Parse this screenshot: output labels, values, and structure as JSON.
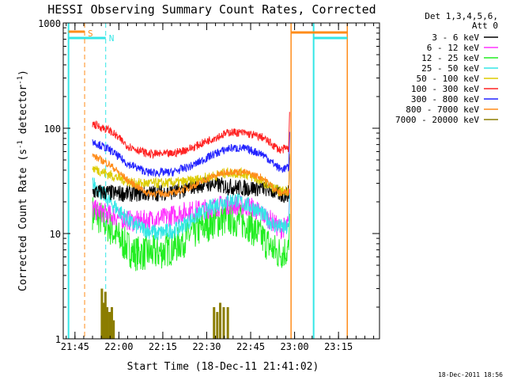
{
  "chart_data": {
    "type": "line",
    "title": "HESSI Observing Summary Count Rates, Corrected",
    "xlabel": "Start Time (18-Dec-11 21:41:02)",
    "ylabel_main": "Corrected Count Rate (s",
    "ylabel_sup1": "-1",
    "ylabel_mid": " detector",
    "ylabel_sup2": "-1",
    "ylabel_end": ")",
    "footer": "18-Dec-2011 18:56",
    "legend_header": [
      "Det 1,3,4,5,6,",
      "Att 0"
    ],
    "y_scale": "log",
    "ylim": [
      1,
      1000
    ],
    "xlim_min": [
      -4,
      104
    ],
    "y_ticks": [
      {
        "value": 1,
        "label": "1"
      },
      {
        "value": 10,
        "label": "10"
      },
      {
        "value": 100,
        "label": "100"
      },
      {
        "value": 1000,
        "label": "1000"
      }
    ],
    "x_ticks": [
      {
        "value": 0,
        "label": "21:45"
      },
      {
        "value": 15,
        "label": "22:00"
      },
      {
        "value": 30,
        "label": "22:15"
      },
      {
        "value": 45,
        "label": "22:30"
      },
      {
        "value": 60,
        "label": "22:45"
      },
      {
        "value": 75,
        "label": "23:00"
      },
      {
        "value": 90,
        "label": "23:15"
      }
    ],
    "markers": [
      {
        "label": "S",
        "x": 3.3,
        "color": "#ff8c1a",
        "style": "dash"
      },
      {
        "label": "N",
        "x": 10.5,
        "color": "#33e6e6",
        "style": "dash"
      }
    ],
    "night_markers": [
      {
        "x": -2.2,
        "color": "#33e6e6"
      },
      {
        "x": 81.5,
        "color": "#33e6e6"
      }
    ],
    "saa_markers": [
      {
        "x": 73.8,
        "color": "#ff8c1a"
      },
      {
        "x": 93.0,
        "color": "#ff8c1a"
      }
    ],
    "series": [
      {
        "name": "3 - 6 keV",
        "color": "#000000",
        "points": [
          [
            6,
            25
          ],
          [
            15,
            24
          ],
          [
            25,
            24
          ],
          [
            35,
            25
          ],
          [
            40,
            28
          ],
          [
            45,
            30
          ],
          [
            52,
            28
          ],
          [
            58,
            27
          ],
          [
            65,
            27
          ],
          [
            71,
            23
          ],
          [
            73,
            24
          ]
        ],
        "noise": 0.08
      },
      {
        "name": "6 - 12 keV",
        "color": "#ff33ff",
        "points": [
          [
            6,
            17
          ],
          [
            12,
            15
          ],
          [
            20,
            13
          ],
          [
            30,
            14
          ],
          [
            37,
            16
          ],
          [
            44,
            17
          ],
          [
            52,
            19
          ],
          [
            60,
            18
          ],
          [
            66,
            14
          ],
          [
            70,
            11
          ],
          [
            73,
            12
          ]
        ],
        "noise": 0.1
      },
      {
        "name": "12 - 25 keV",
        "color": "#22ee22",
        "points": [
          [
            6,
            16
          ],
          [
            10,
            13
          ],
          [
            15,
            9
          ],
          [
            20,
            6.5
          ],
          [
            28,
            6.5
          ],
          [
            34,
            7.5
          ],
          [
            40,
            10
          ],
          [
            47,
            13
          ],
          [
            53,
            14
          ],
          [
            59,
            12.5
          ],
          [
            64,
            9
          ],
          [
            69,
            6.5
          ],
          [
            73,
            7
          ]
        ],
        "noise": 0.17
      },
      {
        "name": "25 - 50 keV",
        "color": "#33e6e6",
        "points": [
          [
            6,
            30
          ],
          [
            12,
            20
          ],
          [
            20,
            12
          ],
          [
            28,
            10
          ],
          [
            35,
            11
          ],
          [
            42,
            15
          ],
          [
            50,
            20
          ],
          [
            55,
            21
          ],
          [
            62,
            17
          ],
          [
            68,
            12
          ],
          [
            73,
            11
          ]
        ],
        "noise": 0.08
      },
      {
        "name": "50 - 100 keV",
        "color": "#ddcc00",
        "points": [
          [
            6,
            42
          ],
          [
            12,
            36
          ],
          [
            20,
            30
          ],
          [
            30,
            30
          ],
          [
            38,
            31
          ],
          [
            45,
            34
          ],
          [
            52,
            38
          ],
          [
            58,
            37
          ],
          [
            64,
            31
          ],
          [
            70,
            25
          ],
          [
            73,
            26
          ]
        ],
        "noise": 0.05
      },
      {
        "name": "100 - 300 keV",
        "color": "#ff2222",
        "points": [
          [
            6,
            110
          ],
          [
            12,
            95
          ],
          [
            18,
            68
          ],
          [
            25,
            57
          ],
          [
            33,
            57
          ],
          [
            40,
            65
          ],
          [
            47,
            80
          ],
          [
            53,
            92
          ],
          [
            58,
            90
          ],
          [
            64,
            82
          ],
          [
            70,
            62
          ],
          [
            73,
            65
          ]
        ],
        "noise": 0.04
      },
      {
        "name": "300 - 800 keV",
        "color": "#2222ff",
        "points": [
          [
            6,
            75
          ],
          [
            12,
            62
          ],
          [
            18,
            46
          ],
          [
            25,
            38
          ],
          [
            33,
            38
          ],
          [
            40,
            44
          ],
          [
            47,
            56
          ],
          [
            53,
            65
          ],
          [
            58,
            64
          ],
          [
            64,
            57
          ],
          [
            70,
            41
          ],
          [
            73,
            42
          ]
        ],
        "noise": 0.04
      },
      {
        "name": "800 - 7000 keV",
        "color": "#ff8c1a",
        "points": [
          [
            6,
            55
          ],
          [
            12,
            45
          ],
          [
            18,
            32
          ],
          [
            25,
            24
          ],
          [
            33,
            24
          ],
          [
            40,
            28
          ],
          [
            47,
            35
          ],
          [
            53,
            39
          ],
          [
            58,
            38
          ],
          [
            64,
            34
          ],
          [
            70,
            24
          ],
          [
            73,
            25
          ]
        ],
        "noise": 0.035
      },
      {
        "name": "7000 - 20000 keV",
        "color": "#8b7d00",
        "points": [
          [
            6,
            1
          ],
          [
            73,
            1
          ]
        ],
        "noise": 0
      }
    ]
  }
}
